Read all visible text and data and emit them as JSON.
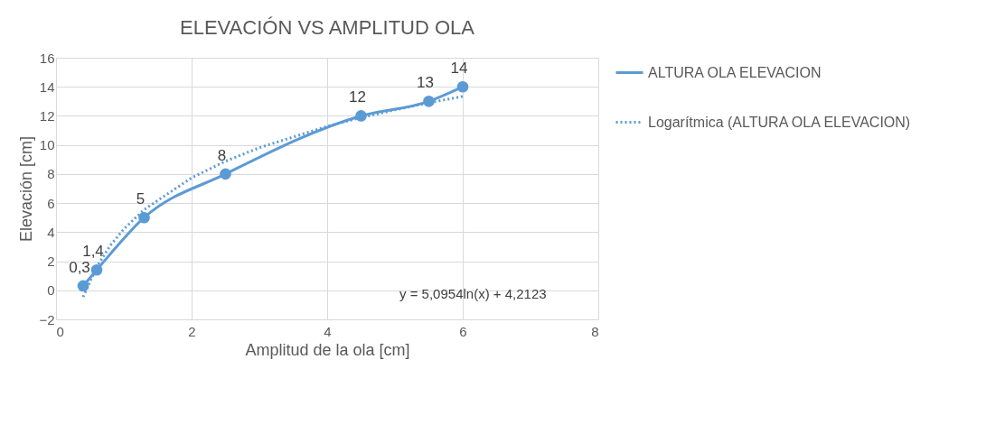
{
  "chart_data": {
    "type": "line",
    "title": "ELEVACIÓN VS AMPLITUD OLA",
    "xlabel": "Amplitud de la ola [cm]",
    "ylabel": "Elevación [cm]",
    "x": [
      0.4,
      0.6,
      1.3,
      2.5,
      4.5,
      5.5,
      6
    ],
    "series": [
      {
        "name": "ALTURA OLA ELEVACION",
        "color": "#5b9bd5",
        "marker": "circle",
        "line_style": "solid",
        "values": [
          0.3,
          1.4,
          5,
          8,
          12,
          13,
          14
        ],
        "value_labels": [
          "0,3",
          "1,4",
          "5",
          "8",
          "12",
          "13",
          "14"
        ]
      },
      {
        "name": "Logarítmica (ALTURA OLA ELEVACION)",
        "type": "line",
        "color": "#5b9bd5",
        "marker": "none",
        "line_style": "dotted",
        "x": [
          0.4,
          0.6,
          0.8,
          1,
          1.3,
          2,
          2.5,
          3,
          4,
          4.5,
          5,
          5.5,
          6
        ],
        "values": [
          -0.46,
          1.61,
          3.08,
          4.21,
          5.55,
          7.74,
          8.88,
          9.81,
          11.28,
          11.88,
          12.41,
          12.9,
          13.34
        ]
      }
    ],
    "annotations": [
      "y = 5,0954ln(x) + 4,2123"
    ],
    "xlim": [
      0,
      8
    ],
    "xticks": [
      0,
      2,
      4,
      6,
      8
    ],
    "ylim": [
      -2,
      16
    ],
    "yticks": [
      -2,
      0,
      2,
      4,
      6,
      8,
      10,
      12,
      14,
      16
    ],
    "grid": true,
    "legend": "right"
  }
}
